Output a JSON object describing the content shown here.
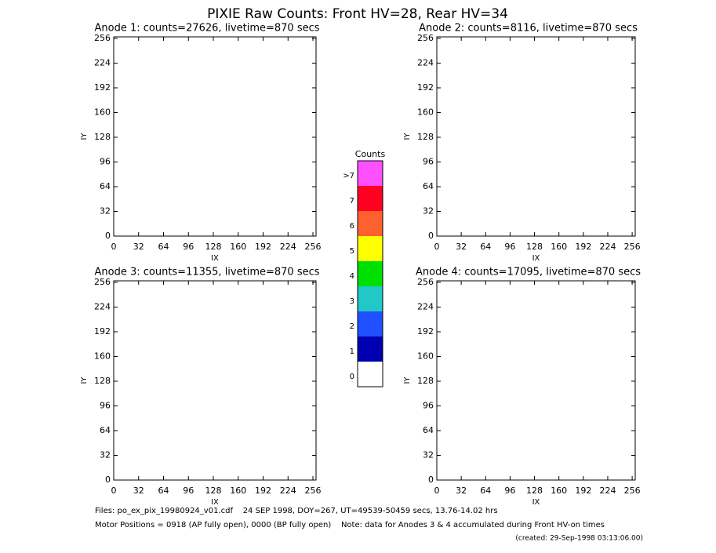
{
  "title": "PIXIE Raw Counts:  Front HV=28, Rear HV=34",
  "chart_data": [
    {
      "type": "heatmap",
      "title": "Anode 1: counts=27626, livetime=870 secs",
      "xlabel": "IX",
      "ylabel": "IY",
      "xlim": [
        0,
        260
      ],
      "ylim": [
        0,
        258
      ],
      "xticks": [
        0,
        32,
        64,
        96,
        128,
        160,
        192,
        224,
        256
      ],
      "yticks": [
        0,
        32,
        64,
        96,
        128,
        160,
        192,
        224,
        256
      ]
    },
    {
      "type": "heatmap",
      "title": "Anode 2: counts=8116, livetime=870 secs",
      "xlabel": "IX",
      "ylabel": "IY",
      "xlim": [
        0,
        260
      ],
      "ylim": [
        0,
        258
      ],
      "xticks": [
        0,
        32,
        64,
        96,
        128,
        160,
        192,
        224,
        256
      ],
      "yticks": [
        0,
        32,
        64,
        96,
        128,
        160,
        192,
        224,
        256
      ]
    },
    {
      "type": "heatmap",
      "title": "Anode 3: counts=11355, livetime=870 secs",
      "xlabel": "IX",
      "ylabel": "IY",
      "xlim": [
        0,
        260
      ],
      "ylim": [
        0,
        258
      ],
      "xticks": [
        0,
        32,
        64,
        96,
        128,
        160,
        192,
        224,
        256
      ],
      "yticks": [
        0,
        32,
        64,
        96,
        128,
        160,
        192,
        224,
        256
      ]
    },
    {
      "type": "heatmap",
      "title": "Anode 4: counts=17095, livetime=870 secs",
      "xlabel": "IX",
      "ylabel": "IY",
      "xlim": [
        0,
        260
      ],
      "ylim": [
        0,
        258
      ],
      "xticks": [
        0,
        32,
        64,
        96,
        128,
        160,
        192,
        224,
        256
      ],
      "yticks": [
        0,
        32,
        64,
        96,
        128,
        160,
        192,
        224,
        256
      ]
    }
  ],
  "colorbar": {
    "title": "Counts",
    "levels": [
      {
        "label": ">7",
        "color": "#ff50ff"
      },
      {
        "label": "7",
        "color": "#ff0020"
      },
      {
        "label": "6",
        "color": "#ff6030"
      },
      {
        "label": "5",
        "color": "#ffff00"
      },
      {
        "label": "4",
        "color": "#00e000"
      },
      {
        "label": "3",
        "color": "#20c8c8"
      },
      {
        "label": "2",
        "color": "#2050ff"
      },
      {
        "label": "1",
        "color": "#0000b0"
      },
      {
        "label": "0",
        "color": "#ffffff"
      }
    ]
  },
  "footer": [
    "Files: po_ex_pix_19980924_v01.cdf    24 SEP 1998, DOY=267, UT=49539-50459 secs, 13.76-14.02 hrs",
    "Motor Positions = 0918 (AP fully open), 0000 (BP fully open)    Note: data for Anodes 3 & 4 accumulated during Front HV-on times",
    "(created: 29-Sep-1998 03:13:06.00)"
  ]
}
